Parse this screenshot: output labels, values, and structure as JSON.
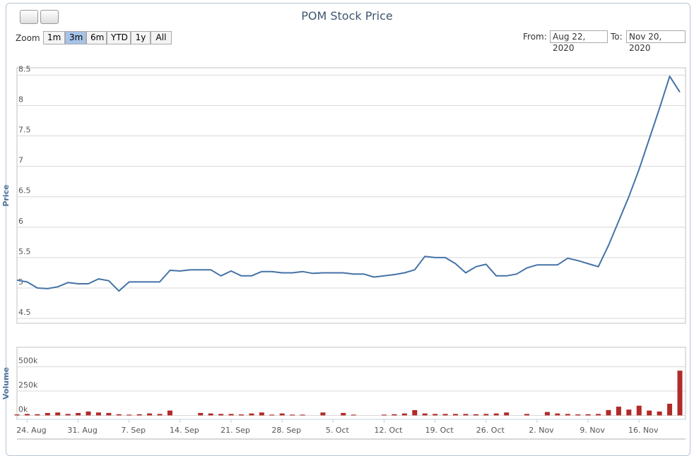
{
  "zoom": {
    "label": "Zoom",
    "buttons": [
      "1m",
      "3m",
      "6m",
      "YTD",
      "1y",
      "All"
    ],
    "selected": 1
  },
  "range": {
    "from_label": "From:",
    "from": "Aug 22, 2020",
    "to_label": "To:",
    "to": "Nov 20, 2020"
  },
  "chart_data": [
    {
      "type": "line",
      "title": "POM Stock Price",
      "y_label": "Price",
      "color": "#4572a7",
      "grid": true,
      "ylim": [
        4.42,
        8.62
      ],
      "yticks": [
        4.5,
        5,
        5.5,
        6,
        6.5,
        7,
        7.5,
        8,
        8.5
      ],
      "values": [
        5.13,
        5.1,
        5.0,
        4.99,
        5.02,
        5.09,
        5.07,
        5.07,
        5.15,
        5.12,
        4.95,
        5.1,
        5.1,
        5.1,
        5.1,
        5.29,
        5.28,
        5.3,
        5.3,
        5.3,
        5.2,
        5.28,
        5.2,
        5.2,
        5.27,
        5.27,
        5.25,
        5.25,
        5.27,
        5.24,
        5.25,
        5.25,
        5.25,
        5.23,
        5.23,
        5.18,
        5.2,
        5.22,
        5.25,
        5.3,
        5.52,
        5.5,
        5.5,
        5.4,
        5.25,
        5.35,
        5.39,
        5.2,
        5.2,
        5.23,
        5.33,
        5.38,
        5.38,
        5.38,
        5.49,
        5.45,
        5.4,
        5.35,
        5.7,
        6.1,
        6.5,
        6.95,
        7.45,
        7.95,
        8.48,
        8.22
      ]
    },
    {
      "type": "bar",
      "y_label": "Volume",
      "color": "#b22a2a",
      "grid": true,
      "ylim": [
        -40000,
        700000
      ],
      "yticks": [
        {
          "value": 0,
          "label": "0k"
        },
        {
          "value": 250000,
          "label": "250k"
        },
        {
          "value": 500000,
          "label": "500k"
        }
      ],
      "categories": [
        null,
        "24. Aug",
        null,
        null,
        null,
        null,
        "31. Aug",
        null,
        null,
        null,
        null,
        "7. Sep",
        null,
        null,
        null,
        null,
        "14. Sep",
        null,
        null,
        null,
        null,
        "21. Sep",
        null,
        null,
        null,
        null,
        "28. Sep",
        null,
        null,
        null,
        null,
        "5. Oct",
        null,
        null,
        null,
        null,
        "12. Oct",
        null,
        null,
        null,
        null,
        "19. Oct",
        null,
        null,
        null,
        null,
        "26. Oct",
        null,
        null,
        null,
        null,
        "2. Nov",
        null,
        null,
        null,
        null,
        "9. Nov",
        null,
        null,
        null,
        null,
        "16. Nov",
        null,
        null,
        null,
        null
      ],
      "values": [
        10000,
        15000,
        12000,
        25000,
        30000,
        15000,
        25000,
        40000,
        30000,
        25000,
        12000,
        8000,
        12000,
        20000,
        15000,
        50000,
        0,
        0,
        25000,
        20000,
        15000,
        15000,
        10000,
        20000,
        30000,
        8000,
        20000,
        8000,
        8000,
        0,
        30000,
        0,
        25000,
        8000,
        0,
        0,
        8000,
        12000,
        20000,
        55000,
        20000,
        15000,
        15000,
        15000,
        15000,
        12000,
        15000,
        20000,
        30000,
        0,
        15000,
        0,
        35000,
        20000,
        15000,
        10000,
        12000,
        15000,
        55000,
        90000,
        60000,
        100000,
        50000,
        40000,
        120000,
        460000
      ]
    }
  ]
}
